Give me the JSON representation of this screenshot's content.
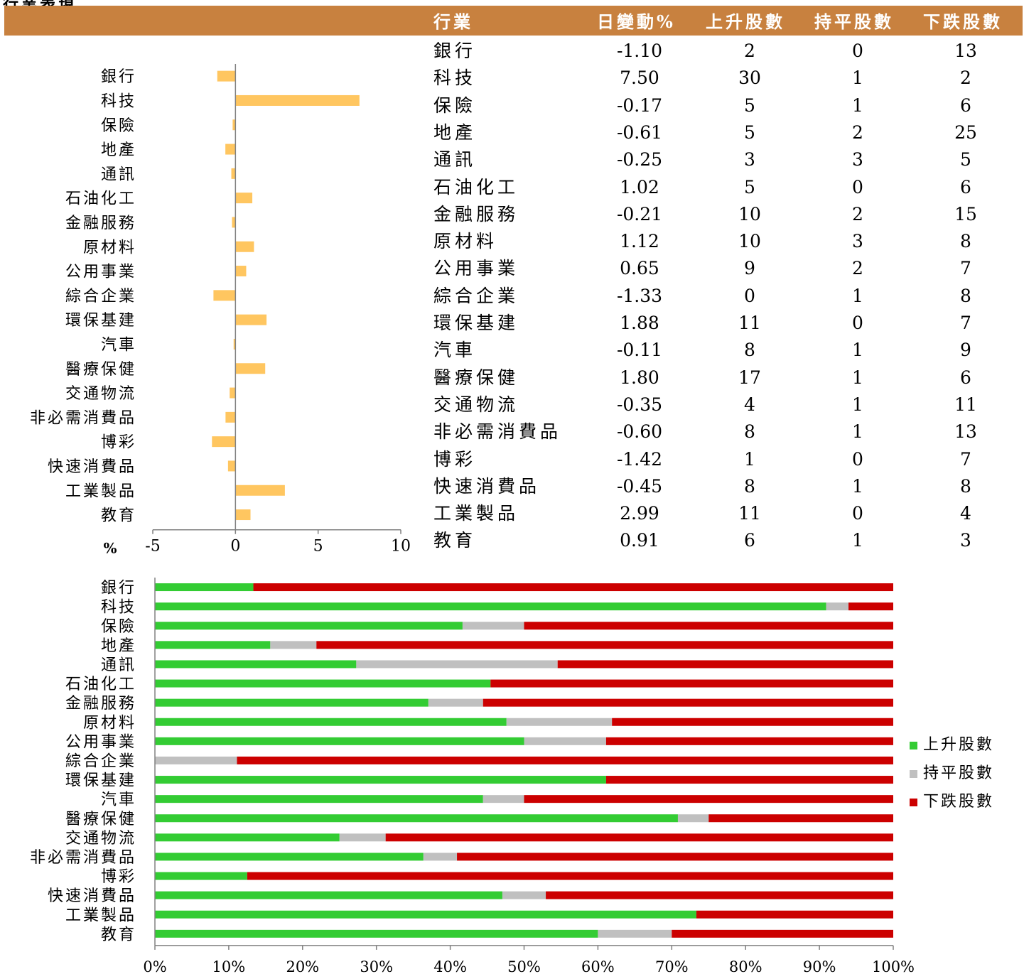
{
  "page": {
    "title": "行業表現"
  },
  "table": {
    "headers": [
      "行業",
      "日變動%",
      "上升股數",
      "持平股數",
      "下跌股數"
    ],
    "header_color": "#c8813f",
    "rows": [
      [
        "銀行",
        "-1.10",
        "2",
        "0",
        "13"
      ],
      [
        "科技",
        "7.50",
        "30",
        "1",
        "2"
      ],
      [
        "保險",
        "-0.17",
        "5",
        "1",
        "6"
      ],
      [
        "地產",
        "-0.61",
        "5",
        "2",
        "25"
      ],
      [
        "通訊",
        "-0.25",
        "3",
        "3",
        "5"
      ],
      [
        "石油化工",
        "1.02",
        "5",
        "0",
        "6"
      ],
      [
        "金融服務",
        "-0.21",
        "10",
        "2",
        "15"
      ],
      [
        "原材料",
        "1.12",
        "10",
        "3",
        "8"
      ],
      [
        "公用事業",
        "0.65",
        "9",
        "2",
        "7"
      ],
      [
        "綜合企業",
        "-1.33",
        "0",
        "1",
        "8"
      ],
      [
        "環保基建",
        "1.88",
        "11",
        "0",
        "7"
      ],
      [
        "汽車",
        "-0.11",
        "8",
        "1",
        "9"
      ],
      [
        "醫療保健",
        "1.80",
        "17",
        "1",
        "6"
      ],
      [
        "交通物流",
        "-0.35",
        "4",
        "1",
        "11"
      ],
      [
        "非必需消費品",
        "-0.60",
        "8",
        "1",
        "13"
      ],
      [
        "博彩",
        "-1.42",
        "1",
        "0",
        "7"
      ],
      [
        "快速消費品",
        "-0.45",
        "8",
        "1",
        "8"
      ],
      [
        "工業製品",
        "2.99",
        "11",
        "0",
        "4"
      ],
      [
        "教育",
        "0.91",
        "6",
        "1",
        "3"
      ]
    ]
  },
  "chart_data": [
    {
      "type": "bar",
      "orientation": "horizontal",
      "categories": [
        "銀行",
        "科技",
        "保險",
        "地產",
        "通訊",
        "石油化工",
        "金融服務",
        "原材料",
        "公用事業",
        "綜合企業",
        "環保基建",
        "汽車",
        "醫療保健",
        "交通物流",
        "非必需消費品",
        "博彩",
        "快速消費品",
        "工業製品",
        "教育"
      ],
      "values": [
        -1.1,
        7.5,
        -0.17,
        -0.61,
        -0.25,
        1.02,
        -0.21,
        1.12,
        0.65,
        -1.33,
        1.88,
        -0.11,
        1.8,
        -0.35,
        -0.6,
        -1.42,
        -0.45,
        2.99,
        0.91
      ],
      "xlim": [
        -5,
        10
      ],
      "xticks": [
        "-5",
        "0",
        "5",
        "10"
      ],
      "xlabel": "%",
      "bar_color": "#ffc660",
      "grid": false,
      "legend": false
    },
    {
      "type": "bar",
      "orientation": "horizontal",
      "stacked": "percent",
      "categories": [
        "銀行",
        "科技",
        "保險",
        "地產",
        "通訊",
        "石油化工",
        "金融服務",
        "原材料",
        "公用事業",
        "綜合企業",
        "環保基建",
        "汽車",
        "醫療保健",
        "交通物流",
        "非必需消費品",
        "博彩",
        "快速消費品",
        "工業製品",
        "教育"
      ],
      "series": [
        {
          "name": "上升股數",
          "color": "#33cc33",
          "values": [
            2,
            30,
            5,
            5,
            3,
            5,
            10,
            10,
            9,
            0,
            11,
            8,
            17,
            4,
            8,
            1,
            8,
            11,
            6
          ]
        },
        {
          "name": "持平股數",
          "color": "#c0c0c0",
          "values": [
            0,
            1,
            1,
            2,
            3,
            0,
            2,
            3,
            2,
            1,
            0,
            1,
            1,
            1,
            1,
            0,
            1,
            0,
            1
          ]
        },
        {
          "name": "下跌股數",
          "color": "#cc0000",
          "values": [
            13,
            2,
            6,
            25,
            5,
            6,
            15,
            8,
            7,
            8,
            7,
            9,
            6,
            11,
            13,
            7,
            8,
            4,
            3
          ]
        }
      ],
      "xticks": [
        "0%",
        "10%",
        "20%",
        "30%",
        "40%",
        "50%",
        "60%",
        "70%",
        "80%",
        "90%",
        "100%"
      ],
      "legend_position": "right",
      "grid": false
    }
  ]
}
